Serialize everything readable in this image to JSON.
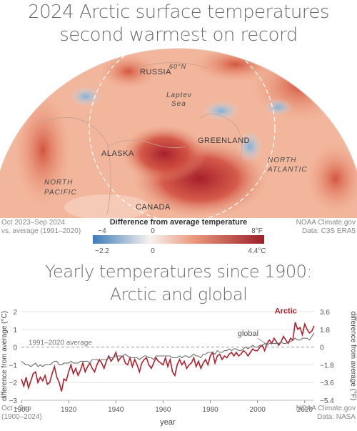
{
  "map": {
    "title_line1": "2024 Arctic surface temperatures",
    "title_line2": "second warmest on record",
    "labels": {
      "russia": "RUSSIA",
      "lat": "60°N",
      "laptev1": "Laptev",
      "laptev2": "Sea",
      "greenland": "GREENLAND",
      "alaska": "ALASKA",
      "north_atlantic1": "NORTH",
      "north_atlantic2": "ATLANTIC",
      "north_pacific1": "NORTH",
      "north_pacific2": "PACIFIC",
      "canada": "CANADA"
    },
    "period_line1": "Oct 2023–Sep 2024",
    "period_line2": "vs. average (1991–2020)",
    "source_line1": "NOAA Climate.gov",
    "source_line2": "Data: C3S ERA5",
    "colors": {
      "cold": "#3d7ab8",
      "neutral": "#f7f3ef",
      "warm": "#9b1f2a"
    }
  },
  "colorbar": {
    "title": "Difference from average temperature",
    "f_ticks": [
      "−4",
      "0",
      "8°F"
    ],
    "c_ticks": [
      "−2.2",
      "0",
      "4.4°C"
    ]
  },
  "chart_titles": {
    "line1": "Yearly temperatures since 1900:",
    "line2": "Arctic and global"
  },
  "footer": {
    "left_line1": "Oct –Sep",
    "left_line2": "(1900–2024)",
    "right_line1": "NOAA Climate.gov",
    "right_line2": "Data: NASA"
  },
  "chart_data": {
    "type": "line",
    "ylabel": "difference from average (°C)",
    "ylabel_right": "difference from average (°F)",
    "xlabel": "year",
    "xlim": [
      1900,
      2024
    ],
    "ylim": [
      -3,
      2
    ],
    "x_ticks": [
      1900,
      1920,
      1940,
      1960,
      1980,
      2000,
      2020
    ],
    "y_ticks": [
      2,
      1,
      0,
      -1,
      -2,
      -3
    ],
    "y_ticks_right": [
      "3.6",
      "1.8",
      "0",
      "−1.8",
      "−3.6",
      "−5.4"
    ],
    "reference_line": {
      "label": "1991–2020 average",
      "value": 0
    },
    "x": [
      1900,
      1901,
      1902,
      1903,
      1904,
      1905,
      1906,
      1907,
      1908,
      1909,
      1910,
      1911,
      1912,
      1913,
      1914,
      1915,
      1916,
      1917,
      1918,
      1919,
      1920,
      1921,
      1922,
      1923,
      1924,
      1925,
      1926,
      1927,
      1928,
      1929,
      1930,
      1931,
      1932,
      1933,
      1934,
      1935,
      1936,
      1937,
      1938,
      1939,
      1940,
      1941,
      1942,
      1943,
      1944,
      1945,
      1946,
      1947,
      1948,
      1949,
      1950,
      1951,
      1952,
      1953,
      1954,
      1955,
      1956,
      1957,
      1958,
      1959,
      1960,
      1961,
      1962,
      1963,
      1964,
      1965,
      1966,
      1967,
      1968,
      1969,
      1970,
      1971,
      1972,
      1973,
      1974,
      1975,
      1976,
      1977,
      1978,
      1979,
      1980,
      1981,
      1982,
      1983,
      1984,
      1985,
      1986,
      1987,
      1988,
      1989,
      1990,
      1991,
      1992,
      1993,
      1994,
      1995,
      1996,
      1997,
      1998,
      1999,
      2000,
      2001,
      2002,
      2003,
      2004,
      2005,
      2006,
      2007,
      2008,
      2009,
      2010,
      2011,
      2012,
      2013,
      2014,
      2015,
      2016,
      2017,
      2018,
      2019,
      2020,
      2021,
      2022,
      2023,
      2024
    ],
    "series": [
      {
        "name": "Arctic",
        "color": "#b0202e",
        "values": [
          -1.8,
          -2.2,
          -1.7,
          -2.3,
          -1.9,
          -1.5,
          -1.4,
          -2.0,
          -1.7,
          -1.9,
          -1.6,
          -2.1,
          -2.0,
          -1.5,
          -1.1,
          -1.7,
          -2.0,
          -2.5,
          -1.8,
          -1.9,
          -1.4,
          -1.0,
          -1.5,
          -1.2,
          -1.6,
          -1.3,
          -0.9,
          -1.4,
          -1.1,
          -0.9,
          -1.2,
          -1.4,
          -1.0,
          -0.7,
          -0.9,
          -1.2,
          -0.8,
          -0.5,
          -0.8,
          -0.6,
          -0.3,
          -0.8,
          -0.6,
          -0.5,
          -0.9,
          -1.0,
          -0.6,
          -1.1,
          -0.7,
          -1.0,
          -1.4,
          -0.9,
          -0.7,
          -0.6,
          -1.0,
          -1.2,
          -0.9,
          -0.6,
          -0.8,
          -0.9,
          -1.0,
          -0.6,
          -1.1,
          -0.7,
          -1.4,
          -1.6,
          -1.0,
          -0.7,
          -1.0,
          -0.8,
          -1.2,
          -1.0,
          -0.9,
          -0.6,
          -1.1,
          -0.8,
          -1.2,
          -0.9,
          -0.7,
          -1.0,
          -0.5,
          -0.3,
          -0.9,
          -0.5,
          -0.4,
          -0.7,
          -0.5,
          -0.6,
          -0.4,
          -0.3,
          -0.5,
          -0.3,
          -0.5,
          -0.4,
          -0.2,
          -0.3,
          -0.5,
          -0.3,
          -0.1,
          -0.2,
          -0.2,
          0.0,
          0.1,
          -0.2,
          0.2,
          0.4,
          0.2,
          0.5,
          0.3,
          0.1,
          0.3,
          0.6,
          0.4,
          0.2,
          0.5,
          0.4,
          1.4,
          1.0,
          1.1,
          0.7,
          1.3,
          1.0,
          0.8,
          0.9,
          1.2
        ]
      },
      {
        "name": "global",
        "color": "#6e6e6e",
        "values": [
          -0.8,
          -0.9,
          -1.0,
          -1.0,
          -1.1,
          -1.0,
          -0.9,
          -1.1,
          -1.0,
          -1.1,
          -1.0,
          -1.0,
          -1.0,
          -0.9,
          -0.8,
          -0.8,
          -1.0,
          -1.0,
          -0.9,
          -0.9,
          -0.9,
          -0.8,
          -0.9,
          -0.9,
          -0.9,
          -0.8,
          -0.8,
          -0.8,
          -0.8,
          -0.9,
          -0.7,
          -0.7,
          -0.7,
          -0.8,
          -0.7,
          -0.7,
          -0.7,
          -0.6,
          -0.6,
          -0.6,
          -0.5,
          -0.5,
          -0.5,
          -0.5,
          -0.4,
          -0.5,
          -0.6,
          -0.6,
          -0.6,
          -0.6,
          -0.7,
          -0.6,
          -0.5,
          -0.5,
          -0.6,
          -0.6,
          -0.7,
          -0.5,
          -0.5,
          -0.5,
          -0.5,
          -0.5,
          -0.5,
          -0.5,
          -0.6,
          -0.6,
          -0.6,
          -0.5,
          -0.6,
          -0.5,
          -0.5,
          -0.6,
          -0.5,
          -0.4,
          -0.5,
          -0.5,
          -0.6,
          -0.4,
          -0.4,
          -0.3,
          -0.3,
          -0.3,
          -0.4,
          -0.2,
          -0.3,
          -0.3,
          -0.2,
          -0.2,
          -0.1,
          -0.2,
          -0.1,
          -0.1,
          -0.2,
          -0.2,
          -0.1,
          0.0,
          -0.1,
          0.0,
          0.1,
          0.0,
          0.0,
          0.1,
          0.1,
          0.2,
          0.1,
          0.2,
          0.2,
          0.2,
          0.2,
          0.2,
          0.3,
          0.2,
          0.2,
          0.3,
          0.3,
          0.4,
          0.5,
          0.4,
          0.4,
          0.5,
          0.5,
          0.5,
          0.4,
          0.6,
          0.8
        ]
      }
    ]
  }
}
